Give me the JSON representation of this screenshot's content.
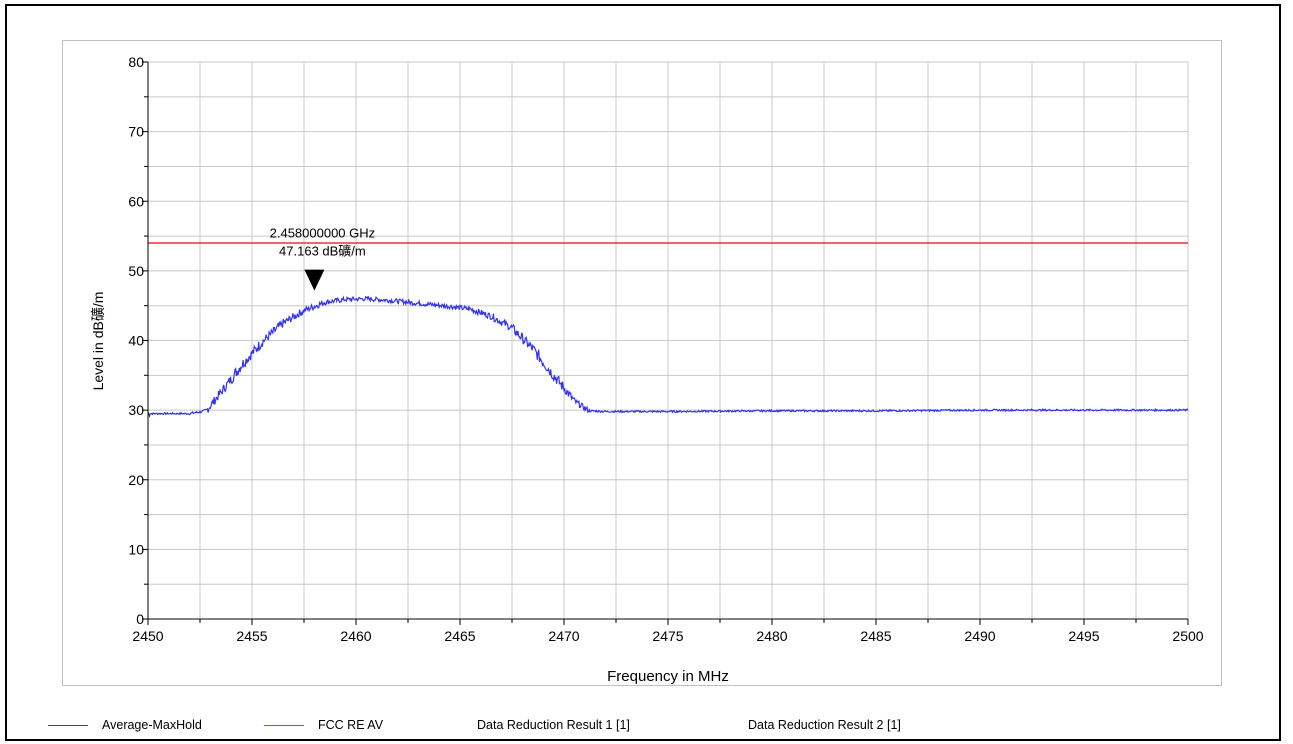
{
  "chart_data": {
    "type": "line",
    "title": "",
    "xlabel": "Frequency in MHz",
    "ylabel": "Level in dB礦/m",
    "xlim": [
      2450,
      2500
    ],
    "ylim": [
      0,
      80
    ],
    "x_ticks": [
      "2450",
      "2455",
      "2460",
      "2465",
      "2470",
      "2475",
      "2480",
      "2485",
      "2490",
      "2495",
      "2500"
    ],
    "y_ticks": [
      "0",
      "10",
      "20",
      "30",
      "40",
      "50",
      "60",
      "70",
      "80"
    ],
    "grid": true,
    "legend_position": "bottom",
    "series": [
      {
        "name": "Average-MaxHold",
        "color": "#3333ee",
        "x": [
          2450,
          2452,
          2452.8,
          2453.5,
          2454.5,
          2455.5,
          2456.5,
          2457.5,
          2458.5,
          2459.5,
          2460.5,
          2461.5,
          2462.5,
          2463.5,
          2464.5,
          2465.5,
          2466.5,
          2467.5,
          2468.5,
          2469.5,
          2470.5,
          2471.2,
          2472,
          2475,
          2480,
          2485,
          2490,
          2495,
          2500
        ],
        "y": [
          29.5,
          29.5,
          29.9,
          32.5,
          36.5,
          39.8,
          42.5,
          44.3,
          45.5,
          45.9,
          46.0,
          45.8,
          45.5,
          45.2,
          44.9,
          44.5,
          43.5,
          41.8,
          38.8,
          35.0,
          31.3,
          29.9,
          29.8,
          29.8,
          29.9,
          29.9,
          30.0,
          30.0,
          30.0
        ]
      },
      {
        "name": "FCC RE AV",
        "color": "#ee3333",
        "x": [
          2450,
          2500
        ],
        "y": [
          54,
          54
        ]
      }
    ],
    "legend_extra": [
      "Data Reduction Result 1 [1]",
      "Data Reduction Result 2 [1]"
    ],
    "marker": {
      "x": 2458,
      "y": 47.163,
      "label_line1": "2.458000000 GHz",
      "label_line2": "47.163 dB礦/m"
    }
  }
}
